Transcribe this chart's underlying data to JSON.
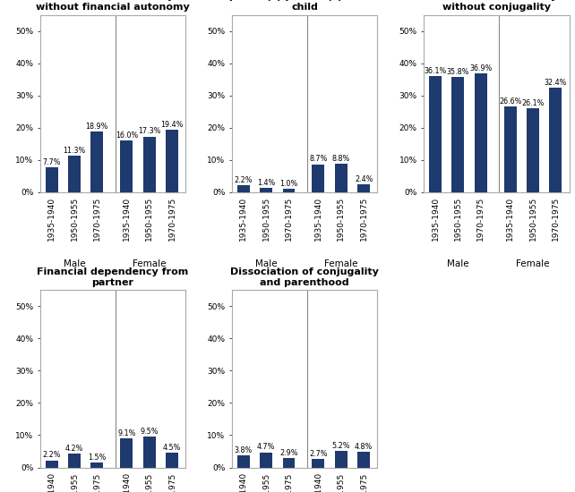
{
  "charts": [
    {
      "title": "Residential autonomy\nwithout financial autonomy",
      "male_values": [
        7.7,
        11.3,
        18.9
      ],
      "female_values": [
        16.0,
        17.3,
        19.4
      ],
      "male_labels": [
        "7.7%",
        "11.3%",
        "18.9%"
      ],
      "female_labels": [
        "16.0%",
        "17.3%",
        "19.4%"
      ],
      "ylim": [
        0,
        0.55
      ],
      "yticks": [
        0,
        0.1,
        0.2,
        0.3,
        0.4,
        0.5
      ],
      "yticklabels": [
        "0%",
        "10%",
        "20%",
        "30%",
        "40%",
        "50%"
      ]
    },
    {
      "title": "Financial dependency from\nparent(s)/partner(s) with a\nchild",
      "male_values": [
        2.2,
        1.4,
        1.0
      ],
      "female_values": [
        8.7,
        8.8,
        2.4
      ],
      "male_labels": [
        "2.2%",
        "1.4%",
        "1.0%"
      ],
      "female_labels": [
        "8.7%",
        "8.8%",
        "2.4%"
      ],
      "ylim": [
        0,
        0.55
      ],
      "yticks": [
        0,
        0.1,
        0.2,
        0.3,
        0.4,
        0.5
      ],
      "yticklabels": [
        "0%",
        "10%",
        "20%",
        "30%",
        "40%",
        "50%"
      ]
    },
    {
      "title": "Residential autonomy\nwithout conjugality",
      "male_values": [
        36.1,
        35.8,
        36.9
      ],
      "female_values": [
        26.6,
        26.1,
        32.4
      ],
      "male_labels": [
        "36.1%",
        "35.8%",
        "36.9%"
      ],
      "female_labels": [
        "26.6%",
        "26.1%",
        "32.4%"
      ],
      "ylim": [
        0,
        0.55
      ],
      "yticks": [
        0,
        0.1,
        0.2,
        0.3,
        0.4,
        0.5
      ],
      "yticklabels": [
        "0%",
        "10%",
        "20%",
        "30%",
        "40%",
        "50%"
      ]
    },
    {
      "title": "Financial dependency from\npartner",
      "male_values": [
        2.2,
        4.2,
        1.5
      ],
      "female_values": [
        9.1,
        9.5,
        4.5
      ],
      "male_labels": [
        "2.2%",
        "4.2%",
        "1.5%"
      ],
      "female_labels": [
        "9.1%",
        "9.5%",
        "4.5%"
      ],
      "ylim": [
        0,
        0.55
      ],
      "yticks": [
        0,
        0.1,
        0.2,
        0.3,
        0.4,
        0.5
      ],
      "yticklabels": [
        "0%",
        "10%",
        "20%",
        "30%",
        "40%",
        "50%"
      ]
    },
    {
      "title": "Dissociation of conjugality\nand parenthood",
      "male_values": [
        3.8,
        4.7,
        2.9
      ],
      "female_values": [
        2.7,
        5.2,
        4.8
      ],
      "male_labels": [
        "3.8%",
        "4.7%",
        "2.9%"
      ],
      "female_labels": [
        "2.7%",
        "5.2%",
        "4.8%"
      ],
      "ylim": [
        0,
        0.55
      ],
      "yticks": [
        0,
        0.1,
        0.2,
        0.3,
        0.4,
        0.5
      ],
      "yticklabels": [
        "0%",
        "10%",
        "20%",
        "30%",
        "40%",
        "50%"
      ]
    }
  ],
  "cohorts": [
    "1935-1940",
    "1950-1955",
    "1970-1975"
  ],
  "bar_color": "#1e3a6e",
  "bar_width": 0.55,
  "label_fontsize": 5.8,
  "title_fontsize": 8.0,
  "tick_fontsize": 6.5,
  "sex_label_fontsize": 7.5
}
